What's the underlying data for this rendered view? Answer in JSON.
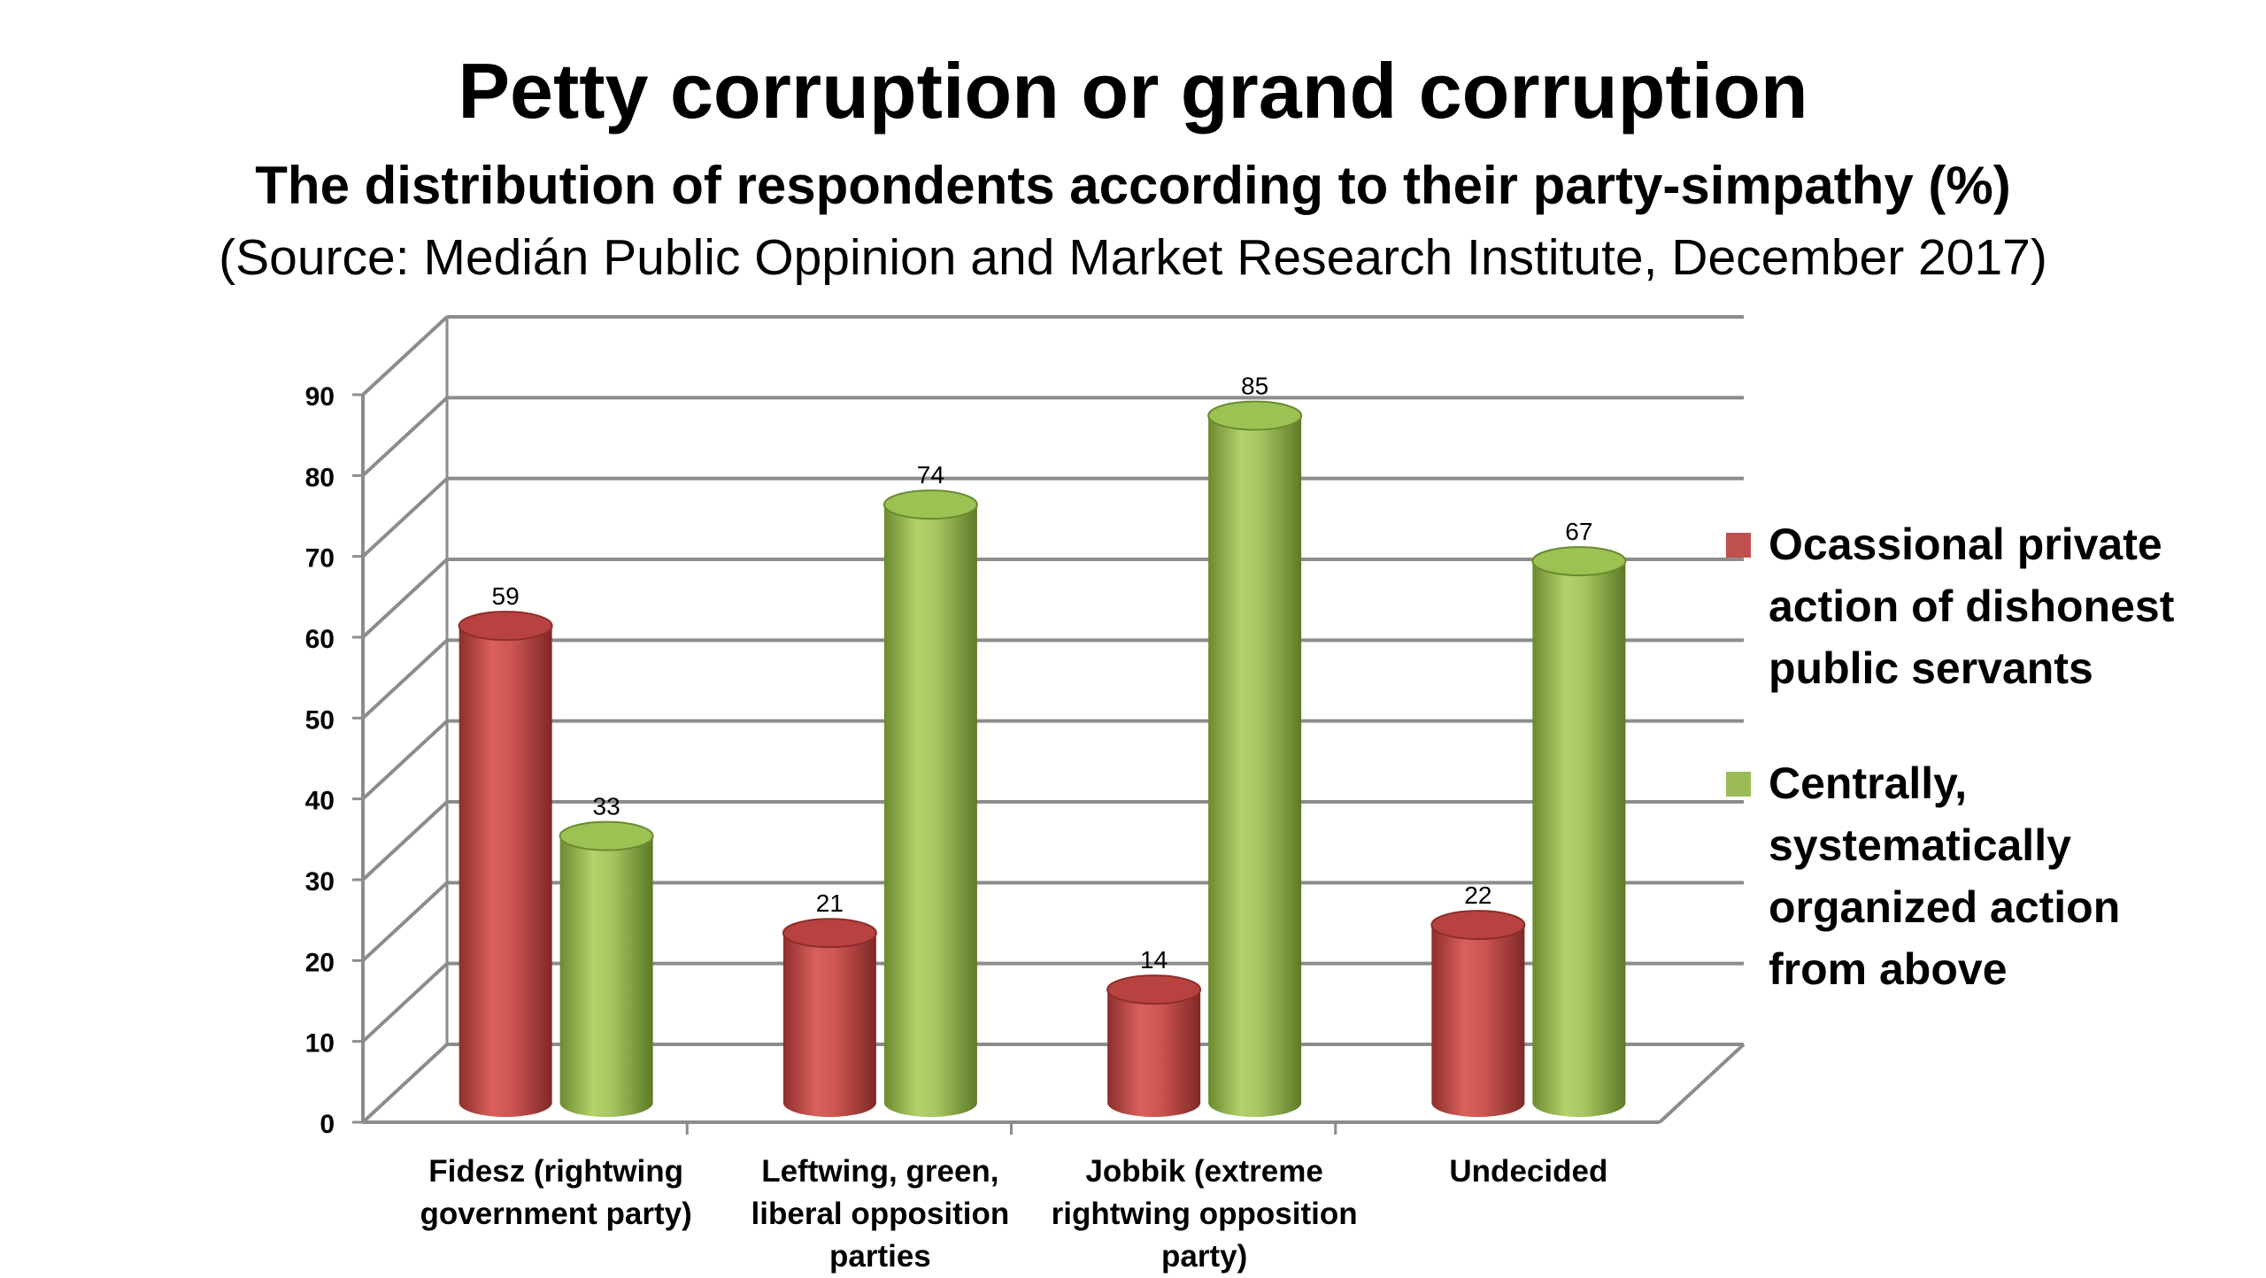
{
  "chart_data": {
    "type": "bar",
    "title": "Petty corruption or grand corruption",
    "subtitle": "The distribution of respondents according to their party-simpathy (%)",
    "source": "(Source: Medián Public Oppinion and Market Research Institute, December 2017)",
    "categories": [
      "Fidesz (rightwing government party)",
      "Leftwing, green, liberal opposition parties",
      "Jobbik (extreme rightwing opposition party)",
      "Undecided"
    ],
    "series": [
      {
        "name": "Ocassional private action of dishonest public servants",
        "color": "#c0504d",
        "values": [
          59,
          21,
          14,
          22
        ]
      },
      {
        "name": "Centrally, systematically organized action from above",
        "color": "#9bbb59",
        "values": [
          33,
          74,
          85,
          67
        ]
      }
    ],
    "ylim": [
      0,
      90
    ],
    "yticks": [
      "0",
      "10",
      "20",
      "30",
      "40",
      "50",
      "60",
      "70",
      "80",
      "90"
    ],
    "grid": true,
    "legend": "right",
    "style": "3d-cylinder"
  }
}
